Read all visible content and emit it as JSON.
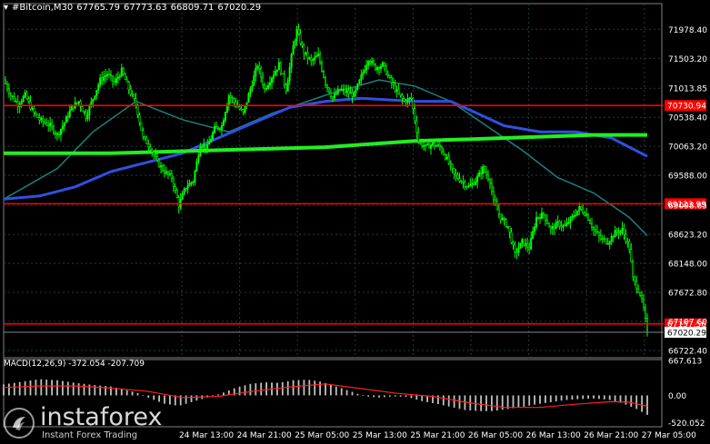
{
  "header": {
    "symbol": "#Bitcoin,M30",
    "open": "67765.79",
    "high": "67773.63",
    "low": "66809.71",
    "close": "67020.29"
  },
  "macd_label": "MACD(12,26,9) -372.054 -207.709",
  "logo": {
    "name": "instaforex",
    "tagline": "Instant Forex Trading"
  },
  "colors": {
    "background": "#000000",
    "bull_candle": "#00ff00",
    "grid": "#1f3f3f",
    "level_line": "#ff0000",
    "ma_fast": "#1e7f7f",
    "ma_mid": "#3050e0",
    "ma_slow": "#22ee22",
    "macd_signal": "#ff2020",
    "macd_hist": "#c0c0c0"
  },
  "chart_data": {
    "type": "candlestick",
    "symbol": "#Bitcoin",
    "timeframe": "M30",
    "ylim": [
      66722.4,
      72250
    ],
    "price_ticks": [
      "71978.40",
      "71503.20",
      "71013.85",
      "70538.40",
      "70063.20",
      "69588.00",
      "69098.65",
      "68623.20",
      "68148.00",
      "67672.80",
      "67197.60",
      "66722.40"
    ],
    "x_tick_labels": [
      "24 Mar 13:00",
      "24 Mar 21:00",
      "25 Mar 05:00",
      "25 Mar 13:00",
      "25 Mar 21:00",
      "26 Mar 05:00",
      "26 Mar 13:00",
      "26 Mar 21:00",
      "27 Mar 05:00"
    ],
    "levels": [
      {
        "price": 70730.94,
        "label": "70730.94"
      },
      {
        "price": 69123.99,
        "label": "69123.99"
      },
      {
        "price": 67157.56,
        "label": "67157.56"
      }
    ],
    "current_price": "67020.29",
    "close_path": [
      [
        0,
        71150
      ],
      [
        4,
        70900
      ],
      [
        8,
        70750
      ],
      [
        12,
        70900
      ],
      [
        16,
        70650
      ],
      [
        20,
        70500
      ],
      [
        26,
        70400
      ],
      [
        30,
        70250
      ],
      [
        34,
        70450
      ],
      [
        38,
        70700
      ],
      [
        42,
        70800
      ],
      [
        46,
        70550
      ],
      [
        50,
        70850
      ],
      [
        54,
        71150
      ],
      [
        58,
        71250
      ],
      [
        62,
        71100
      ],
      [
        66,
        71300
      ],
      [
        70,
        71000
      ],
      [
        74,
        70750
      ],
      [
        78,
        70200
      ],
      [
        82,
        70050
      ],
      [
        86,
        69800
      ],
      [
        90,
        69650
      ],
      [
        94,
        69550
      ],
      [
        98,
        69100
      ],
      [
        102,
        69400
      ],
      [
        106,
        69500
      ],
      [
        110,
        70100
      ],
      [
        114,
        70050
      ],
      [
        118,
        70350
      ],
      [
        122,
        70400
      ],
      [
        126,
        70900
      ],
      [
        130,
        70750
      ],
      [
        134,
        70600
      ],
      [
        138,
        71000
      ],
      [
        142,
        71400
      ],
      [
        146,
        71000
      ],
      [
        150,
        71200
      ],
      [
        154,
        71400
      ],
      [
        158,
        71000
      ],
      [
        162,
        71700
      ],
      [
        164,
        71950
      ],
      [
        168,
        71600
      ],
      [
        172,
        71450
      ],
      [
        176,
        71550
      ],
      [
        180,
        71100
      ],
      [
        184,
        70850
      ],
      [
        188,
        71000
      ],
      [
        192,
        70950
      ],
      [
        196,
        70900
      ],
      [
        200,
        71200
      ],
      [
        204,
        71500
      ],
      [
        208,
        71350
      ],
      [
        212,
        71400
      ],
      [
        216,
        71150
      ],
      [
        220,
        70950
      ],
      [
        224,
        70800
      ],
      [
        228,
        70850
      ],
      [
        232,
        70150
      ],
      [
        236,
        70050
      ],
      [
        240,
        70100
      ],
      [
        244,
        70050
      ],
      [
        248,
        69850
      ],
      [
        252,
        69600
      ],
      [
        256,
        69500
      ],
      [
        260,
        69400
      ],
      [
        264,
        69500
      ],
      [
        268,
        69700
      ],
      [
        272,
        69500
      ],
      [
        274,
        69150
      ],
      [
        278,
        68900
      ],
      [
        282,
        68750
      ],
      [
        286,
        68300
      ],
      [
        290,
        68500
      ],
      [
        294,
        68400
      ],
      [
        298,
        68900
      ],
      [
        302,
        68950
      ],
      [
        306,
        68700
      ],
      [
        310,
        68800
      ],
      [
        314,
        68750
      ],
      [
        318,
        68900
      ],
      [
        322,
        69050
      ],
      [
        326,
        68950
      ],
      [
        330,
        68700
      ],
      [
        334,
        68550
      ],
      [
        338,
        68500
      ],
      [
        342,
        68650
      ],
      [
        346,
        68700
      ],
      [
        350,
        68400
      ],
      [
        352,
        67900
      ],
      [
        356,
        67650
      ],
      [
        358,
        67400
      ],
      [
        360,
        67020
      ]
    ],
    "ma_fast_path": [
      [
        0,
        69200
      ],
      [
        30,
        69700
      ],
      [
        50,
        70300
      ],
      [
        74,
        70800
      ],
      [
        100,
        70500
      ],
      [
        126,
        70300
      ],
      [
        150,
        70600
      ],
      [
        180,
        70900
      ],
      [
        210,
        71150
      ],
      [
        230,
        71050
      ],
      [
        250,
        70800
      ],
      [
        270,
        70400
      ],
      [
        290,
        70000
      ],
      [
        310,
        69550
      ],
      [
        330,
        69300
      ],
      [
        350,
        68900
      ],
      [
        360,
        68600
      ]
    ],
    "ma_mid_path": [
      [
        0,
        69200
      ],
      [
        20,
        69250
      ],
      [
        40,
        69400
      ],
      [
        60,
        69650
      ],
      [
        80,
        69800
      ],
      [
        100,
        69950
      ],
      [
        120,
        70200
      ],
      [
        140,
        70450
      ],
      [
        160,
        70700
      ],
      [
        180,
        70800
      ],
      [
        200,
        70850
      ],
      [
        230,
        70800
      ],
      [
        250,
        70800
      ],
      [
        265,
        70600
      ],
      [
        280,
        70400
      ],
      [
        300,
        70300
      ],
      [
        320,
        70300
      ],
      [
        340,
        70200
      ],
      [
        360,
        69900
      ]
    ],
    "ma_slow_path": [
      [
        0,
        69950
      ],
      [
        60,
        69950
      ],
      [
        120,
        70000
      ],
      [
        180,
        70050
      ],
      [
        230,
        70150
      ],
      [
        280,
        70200
      ],
      [
        330,
        70250
      ],
      [
        360,
        70250
      ]
    ],
    "macd": {
      "label": "MACD(12,26,9)",
      "main": -372.054,
      "signal": -207.709,
      "ylim": [
        -600,
        720
      ],
      "ticks": [
        "667.613",
        "0.00",
        "-520.052"
      ],
      "histogram": [
        [
          0,
          210
        ],
        [
          10,
          260
        ],
        [
          20,
          310
        ],
        [
          30,
          290
        ],
        [
          40,
          240
        ],
        [
          50,
          200
        ],
        [
          60,
          170
        ],
        [
          66,
          120
        ],
        [
          74,
          60
        ],
        [
          82,
          -60
        ],
        [
          90,
          -160
        ],
        [
          98,
          -200
        ],
        [
          106,
          -120
        ],
        [
          114,
          -40
        ],
        [
          122,
          40
        ],
        [
          130,
          150
        ],
        [
          138,
          220
        ],
        [
          146,
          250
        ],
        [
          154,
          240
        ],
        [
          162,
          290
        ],
        [
          170,
          300
        ],
        [
          178,
          260
        ],
        [
          186,
          170
        ],
        [
          194,
          80
        ],
        [
          202,
          -20
        ],
        [
          210,
          -40
        ],
        [
          218,
          -20
        ],
        [
          226,
          -30
        ],
        [
          234,
          -110
        ],
        [
          242,
          -160
        ],
        [
          250,
          -220
        ],
        [
          258,
          -280
        ],
        [
          266,
          -300
        ],
        [
          274,
          -300
        ],
        [
          282,
          -260
        ],
        [
          290,
          -220
        ],
        [
          298,
          -170
        ],
        [
          306,
          -130
        ],
        [
          314,
          -90
        ],
        [
          322,
          -70
        ],
        [
          330,
          -60
        ],
        [
          338,
          -80
        ],
        [
          346,
          -150
        ],
        [
          354,
          -260
        ],
        [
          360,
          -372
        ]
      ],
      "signal_path": [
        [
          0,
          150
        ],
        [
          20,
          180
        ],
        [
          40,
          180
        ],
        [
          60,
          140
        ],
        [
          80,
          80
        ],
        [
          100,
          -40
        ],
        [
          120,
          -20
        ],
        [
          140,
          80
        ],
        [
          160,
          160
        ],
        [
          180,
          220
        ],
        [
          200,
          130
        ],
        [
          220,
          40
        ],
        [
          240,
          -20
        ],
        [
          260,
          -140
        ],
        [
          280,
          -230
        ],
        [
          300,
          -230
        ],
        [
          320,
          -170
        ],
        [
          340,
          -120
        ],
        [
          350,
          -130
        ],
        [
          360,
          -208
        ]
      ]
    }
  }
}
